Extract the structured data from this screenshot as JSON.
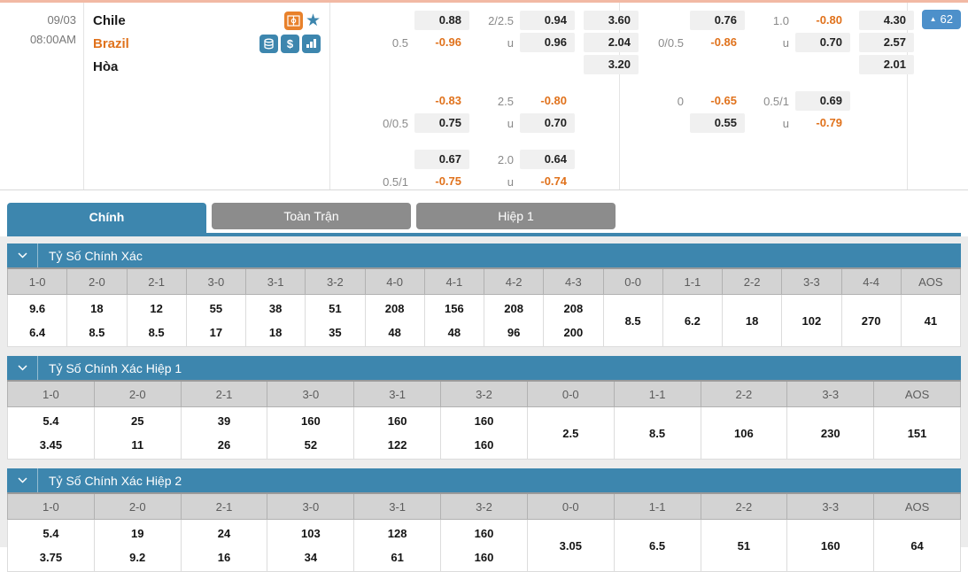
{
  "theme": {
    "blue": "#3d86ae",
    "orange": "#e0721c",
    "tab-gray": "#8c8c8c",
    "badge": "#4d90ca",
    "pill": "#f0f0f0"
  },
  "match": {
    "date": "09/03",
    "time": "08:00AM",
    "home_team": "Chile",
    "away_team": "Brazil",
    "draw_label": "Hòa",
    "icons": [
      "soccer-field-icon",
      "star-icon",
      "coins-icon",
      "dollar-icon",
      "stats-bars-icon"
    ],
    "live_count": "62",
    "live_trend_icon": "up-triangle"
  },
  "odds_left": {
    "b1": {
      "r1": {
        "hc": "0.88",
        "ou_line": "2/2.5",
        "ou": "0.94",
        "x12": "3.60"
      },
      "r2": {
        "hc_line": "0.5",
        "hc": "-0.96",
        "ou_line": "u",
        "ou": "0.96",
        "x12": "2.04"
      },
      "r3": {
        "x12": "3.20"
      }
    },
    "b2": {
      "r1": {
        "hc": "-0.83",
        "ou_line": "2.5",
        "ou": "-0.80"
      },
      "r2": {
        "hc_line": "0/0.5",
        "hc": "0.75",
        "ou_line": "u",
        "ou": "0.70"
      }
    },
    "b3": {
      "r1": {
        "hc": "0.67",
        "ou_line": "2.0",
        "ou": "0.64"
      },
      "r2": {
        "hc_line": "0.5/1",
        "hc": "-0.75",
        "ou_line": "u",
        "ou": "-0.74"
      }
    }
  },
  "odds_right": {
    "b1": {
      "r1": {
        "hc": "0.76",
        "ou_line": "1.0",
        "ou": "-0.80",
        "x12": "4.30"
      },
      "r2": {
        "hc_line": "0/0.5",
        "hc": "-0.86",
        "ou_line": "u",
        "ou": "0.70",
        "x12": "2.57"
      },
      "r3": {
        "x12": "2.01"
      }
    },
    "b2": {
      "r1": {
        "hc_line": "0",
        "hc": "-0.65",
        "ou_line": "0.5/1",
        "ou": "0.69"
      },
      "r2": {
        "hc": "0.55",
        "ou_line": "u",
        "ou": "-0.79"
      }
    }
  },
  "tabs": [
    {
      "label": "Chính",
      "active": true
    },
    {
      "label": "Toàn Trận",
      "active": false
    },
    {
      "label": "Hiệp 1",
      "active": false
    }
  ],
  "score_tables": [
    {
      "title": "Tỷ Số Chính Xác",
      "columns": [
        {
          "label": "1-0",
          "values": [
            "9.6",
            "6.4"
          ]
        },
        {
          "label": "2-0",
          "values": [
            "18",
            "8.5"
          ]
        },
        {
          "label": "2-1",
          "values": [
            "12",
            "8.5"
          ]
        },
        {
          "label": "3-0",
          "values": [
            "55",
            "17"
          ]
        },
        {
          "label": "3-1",
          "values": [
            "38",
            "18"
          ]
        },
        {
          "label": "3-2",
          "values": [
            "51",
            "35"
          ]
        },
        {
          "label": "4-0",
          "values": [
            "208",
            "48"
          ]
        },
        {
          "label": "4-1",
          "values": [
            "156",
            "48"
          ]
        },
        {
          "label": "4-2",
          "values": [
            "208",
            "96"
          ]
        },
        {
          "label": "4-3",
          "values": [
            "208",
            "200"
          ]
        },
        {
          "label": "0-0",
          "values": [
            "8.5"
          ]
        },
        {
          "label": "1-1",
          "values": [
            "6.2"
          ]
        },
        {
          "label": "2-2",
          "values": [
            "18"
          ]
        },
        {
          "label": "3-3",
          "values": [
            "102"
          ]
        },
        {
          "label": "4-4",
          "values": [
            "270"
          ]
        },
        {
          "label": "AOS",
          "values": [
            "41"
          ]
        }
      ]
    },
    {
      "title": "Tỷ Số Chính Xác Hiệp 1",
      "columns": [
        {
          "label": "1-0",
          "values": [
            "5.4",
            "3.45"
          ]
        },
        {
          "label": "2-0",
          "values": [
            "25",
            "11"
          ]
        },
        {
          "label": "2-1",
          "values": [
            "39",
            "26"
          ]
        },
        {
          "label": "3-0",
          "values": [
            "160",
            "52"
          ]
        },
        {
          "label": "3-1",
          "values": [
            "160",
            "122"
          ]
        },
        {
          "label": "3-2",
          "values": [
            "160",
            "160"
          ]
        },
        {
          "label": "0-0",
          "values": [
            "2.5"
          ]
        },
        {
          "label": "1-1",
          "values": [
            "8.5"
          ]
        },
        {
          "label": "2-2",
          "values": [
            "106"
          ]
        },
        {
          "label": "3-3",
          "values": [
            "230"
          ]
        },
        {
          "label": "AOS",
          "values": [
            "151"
          ]
        }
      ]
    },
    {
      "title": "Tỷ Số Chính Xác Hiệp 2",
      "columns": [
        {
          "label": "1-0",
          "values": [
            "5.4",
            "3.75"
          ]
        },
        {
          "label": "2-0",
          "values": [
            "19",
            "9.2"
          ]
        },
        {
          "label": "2-1",
          "values": [
            "24",
            "16"
          ]
        },
        {
          "label": "3-0",
          "values": [
            "103",
            "34"
          ]
        },
        {
          "label": "3-1",
          "values": [
            "128",
            "61"
          ]
        },
        {
          "label": "3-2",
          "values": [
            "160",
            "160"
          ]
        },
        {
          "label": "0-0",
          "values": [
            "3.05"
          ]
        },
        {
          "label": "1-1",
          "values": [
            "6.5"
          ]
        },
        {
          "label": "2-2",
          "values": [
            "51"
          ]
        },
        {
          "label": "3-3",
          "values": [
            "160"
          ]
        },
        {
          "label": "AOS",
          "values": [
            "64"
          ]
        }
      ]
    }
  ]
}
